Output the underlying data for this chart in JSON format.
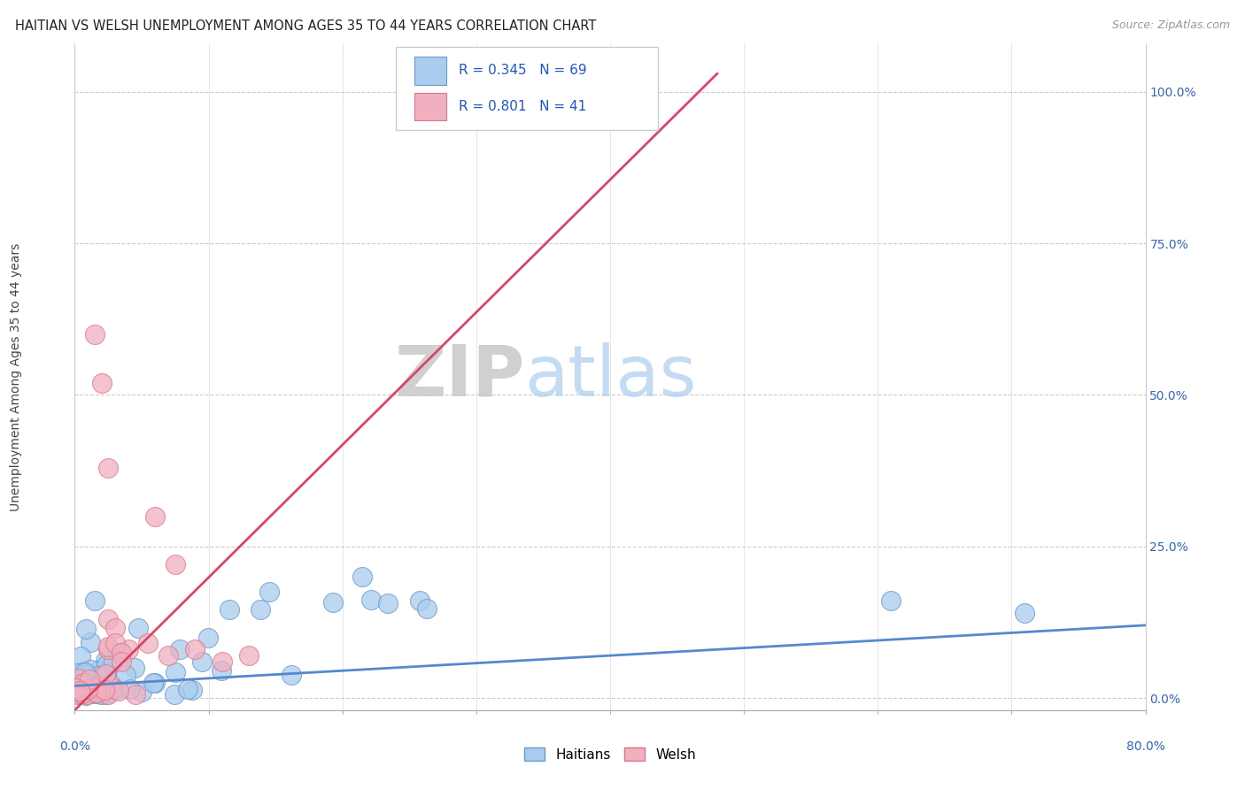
{
  "title": "HAITIAN VS WELSH UNEMPLOYMENT AMONG AGES 35 TO 44 YEARS CORRELATION CHART",
  "source": "Source: ZipAtlas.com",
  "ylabel": "Unemployment Among Ages 35 to 44 years",
  "ytick_vals": [
    0.0,
    0.25,
    0.5,
    0.75,
    1.0
  ],
  "ytick_labels": [
    "0.0%",
    "25.0%",
    "50.0%",
    "75.0%",
    "100.0%"
  ],
  "xlim": [
    0.0,
    0.8
  ],
  "ylim": [
    -0.02,
    1.08
  ],
  "haitians_color": "#aaccee",
  "haitians_edge": "#6699cc",
  "welsh_color": "#f0b0c0",
  "welsh_edge": "#dd7788",
  "line_haitian_color": "#5588cc",
  "line_welsh_color": "#dd4466",
  "legend_r_haitian": "R = 0.345",
  "legend_n_haitian": "N = 69",
  "legend_r_welsh": "R = 0.801",
  "legend_n_welsh": "N = 41",
  "watermark_zip": "ZIP",
  "watermark_atlas": "atlas",
  "legend_label_haitians": "Haitians",
  "legend_label_welsh": "Welsh",
  "haitian_line_x": [
    0.0,
    0.8
  ],
  "haitian_line_y": [
    0.02,
    0.12
  ],
  "welsh_line_x": [
    0.0,
    0.48
  ],
  "welsh_line_y": [
    -0.02,
    1.03
  ]
}
